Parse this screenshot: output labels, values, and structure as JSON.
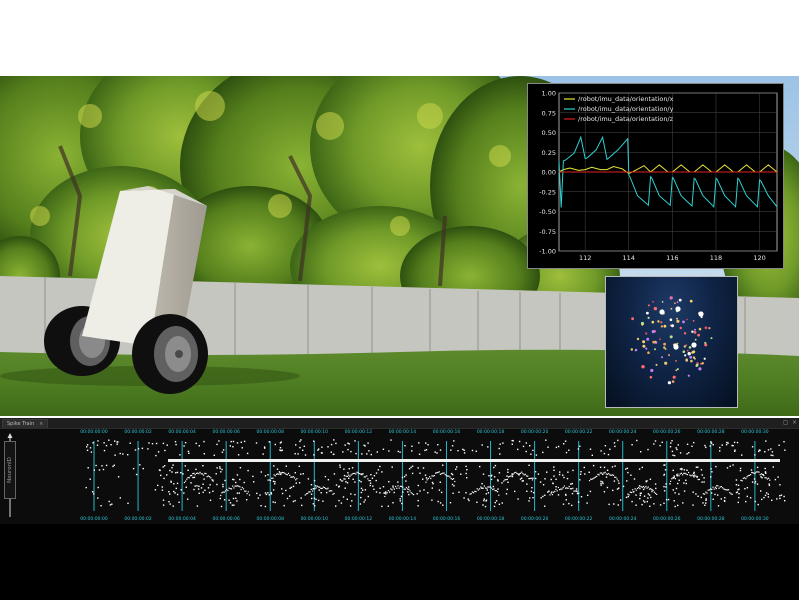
{
  "plot": {
    "series": [
      {
        "name": "/robot/imu_data/orientation/x",
        "color": "#e8e832"
      },
      {
        "name": "/robot/imu_data/orientation/y",
        "color": "#2fd1d1"
      },
      {
        "name": "/robot/imu_data/orientation/z",
        "color": "#e02020"
      }
    ],
    "y_ticks": [
      "1.00",
      "0.75",
      "0.50",
      "0.25",
      "0.00",
      "-0.25",
      "-0.50",
      "-0.75",
      "-1.00"
    ],
    "x_ticks": [
      "112",
      "114",
      "116",
      "118",
      "120"
    ]
  },
  "chart_data": {
    "type": "line",
    "xlim": [
      110.8,
      120.8
    ],
    "ylim": [
      -1.0,
      1.0
    ],
    "grid": true,
    "legend_position": "top-left",
    "series": [
      {
        "name": "/robot/imu_data/orientation/x",
        "color": "#e8e832",
        "x": [
          110.8,
          111.0,
          111.3,
          111.7,
          112.0,
          112.3,
          112.7,
          113.0,
          113.3,
          113.7,
          114.0,
          114.3,
          114.7,
          115.0,
          115.4,
          115.8,
          116.0,
          116.4,
          116.8,
          117.0,
          117.4,
          117.8,
          118.0,
          118.4,
          118.8,
          119.0,
          119.4,
          119.8,
          120.0,
          120.4,
          120.8
        ],
        "y": [
          0.0,
          0.03,
          0.05,
          0.02,
          0.03,
          0.06,
          0.03,
          0.03,
          0.07,
          0.04,
          -0.02,
          0.02,
          0.08,
          0.0,
          0.09,
          0.0,
          0.0,
          0.09,
          0.0,
          0.0,
          0.09,
          0.0,
          0.0,
          0.09,
          0.0,
          0.0,
          0.09,
          0.0,
          0.0,
          0.09,
          0.0
        ]
      },
      {
        "name": "/robot/imu_data/orientation/y",
        "color": "#2fd1d1",
        "x": [
          110.8,
          110.9,
          111.0,
          111.1,
          111.5,
          111.8,
          112.0,
          112.1,
          112.5,
          112.8,
          113.0,
          113.1,
          113.5,
          113.95,
          114.0,
          114.05,
          114.4,
          114.9,
          115.0,
          115.05,
          115.4,
          115.9,
          116.0,
          116.05,
          116.4,
          116.9,
          117.0,
          117.05,
          117.4,
          117.9,
          118.0,
          118.05,
          118.4,
          118.9,
          119.0,
          119.05,
          119.4,
          119.9,
          120.0,
          120.05,
          120.4,
          120.8
        ],
        "y": [
          0.13,
          -0.45,
          0.14,
          0.15,
          0.24,
          0.44,
          0.17,
          0.18,
          0.28,
          0.44,
          0.16,
          0.18,
          0.28,
          0.42,
          -0.04,
          -0.06,
          -0.3,
          -0.42,
          -0.06,
          -0.07,
          -0.3,
          -0.42,
          -0.07,
          -0.08,
          -0.3,
          -0.43,
          -0.08,
          -0.09,
          -0.3,
          -0.44,
          -0.08,
          -0.09,
          -0.3,
          -0.44,
          -0.08,
          -0.09,
          -0.3,
          -0.44,
          -0.1,
          -0.11,
          -0.3,
          -0.44
        ]
      },
      {
        "name": "/robot/imu_data/orientation/z",
        "color": "#e02020",
        "x": [
          110.8,
          120.8
        ],
        "y": [
          0.0,
          0.0
        ]
      }
    ]
  },
  "spike_panel": {
    "tab_label": "Spike Train",
    "tab_close": "×",
    "window_icons": [
      "◻",
      "×"
    ],
    "ylabel": "NeuronID",
    "time_labels": [
      "00:00:00:00",
      "00:00:00:02",
      "00:00:00:04",
      "00:00:00:06",
      "00:00:00:08",
      "00:00:00:10",
      "00:00:00:12",
      "00:00:00:14",
      "00:00:00:16",
      "00:00:00:18",
      "00:00:00:20",
      "00:00:00:22",
      "00:00:00:24",
      "00:00:00:26",
      "00:00:00:28",
      "00:00:00:30"
    ],
    "label_color": "#2ec4d6",
    "marker_color": "#23b8c8"
  }
}
